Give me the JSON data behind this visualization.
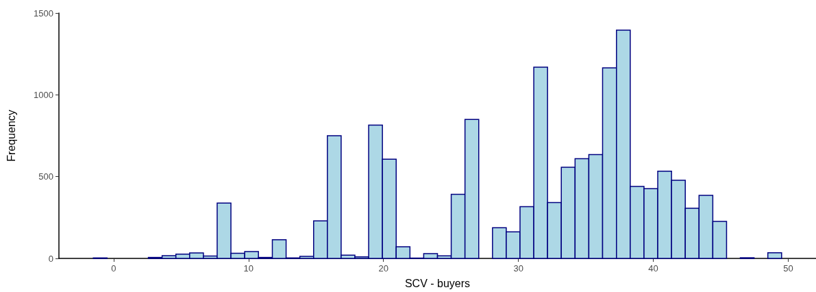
{
  "chart_data": {
    "type": "histogram",
    "xlabel": "SCV - buyers",
    "ylabel": "Frequency",
    "bins": [
      -1.51,
      -0.49,
      0.53,
      1.55,
      2.57,
      3.59,
      4.61,
      5.63,
      6.65,
      7.67,
      8.69,
      9.71,
      10.73,
      11.76,
      12.78,
      13.8,
      14.82,
      15.84,
      16.86,
      17.88,
      18.9,
      19.92,
      20.94,
      21.96,
      22.98,
      24,
      25.02,
      26.04,
      27.06,
      28.08,
      29.1,
      30.12,
      31.14,
      32.16,
      33.18,
      34.2,
      35.22,
      36.24,
      37.27,
      38.29,
      39.31,
      40.33,
      41.35,
      42.37,
      43.39,
      44.41,
      45.43,
      46.45,
      47.47,
      48.49,
      49.51
    ],
    "values": [
      3,
      0,
      0,
      0,
      6,
      17,
      26,
      34,
      15,
      338,
      31,
      42,
      6,
      114,
      3,
      13,
      229,
      750,
      20,
      9,
      815,
      607,
      71,
      2,
      29,
      16,
      392,
      850,
      0,
      187,
      162,
      316,
      1169,
      342,
      557,
      610,
      635,
      1165,
      1395,
      440,
      426,
      533,
      478,
      307,
      385,
      226,
      0,
      4,
      0,
      35
    ],
    "color": "#add8e6",
    "xlim": [
      -4.06,
      52.06
    ],
    "xticks": [
      0,
      10,
      20,
      30,
      40,
      50
    ],
    "ylim": [
      0,
      1500
    ],
    "yticks": [
      0,
      500,
      1000,
      1500
    ],
    "grid": false
  }
}
